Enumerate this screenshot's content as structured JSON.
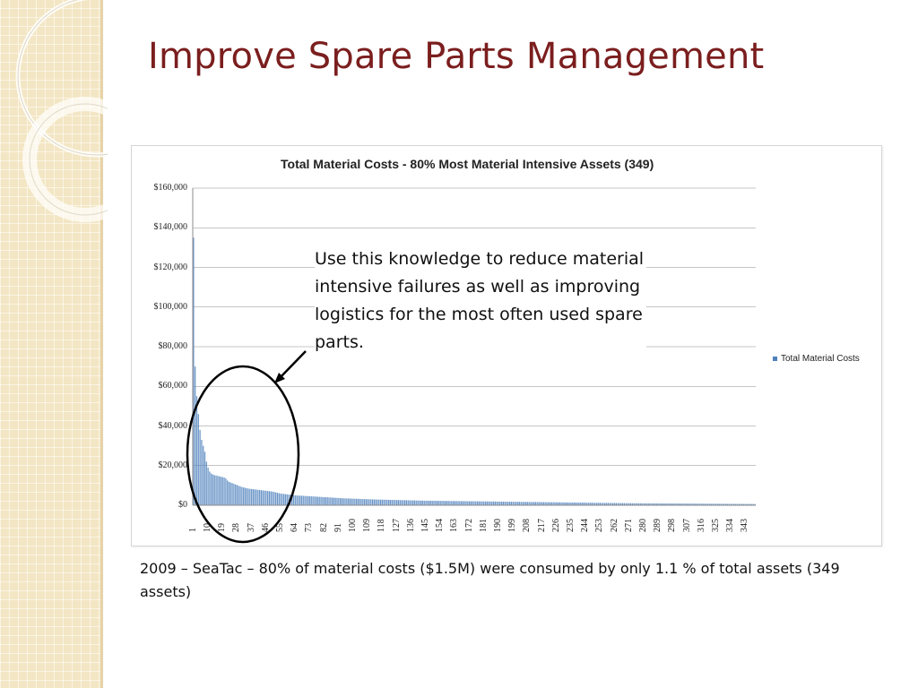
{
  "slide": {
    "title": "Improve Spare Parts Management",
    "callout_text": "Use this knowledge to reduce material intensive failures as well as improving logistics for the most often used spare parts.",
    "footer_text": "2009 – SeaTac – 80% of material costs ($1.5M) were consumed by only 1.1 % of total assets (349 assets)"
  },
  "colors": {
    "title": "#7b1e1e",
    "bar": "#4f81bd",
    "band": "#f3e6c4"
  },
  "chart_data": {
    "type": "bar",
    "title": "Total Material Costs - 80% Most Material Intensive Assets (349)",
    "xlabel": "",
    "ylabel": "",
    "ylim": [
      0,
      160000
    ],
    "y_ticks": [
      "$0",
      "$20,000",
      "$40,000",
      "$60,000",
      "$80,000",
      "$100,000",
      "$120,000",
      "$140,000",
      "$160,000"
    ],
    "x_tick_labels": [
      "1",
      "10",
      "19",
      "28",
      "37",
      "46",
      "55",
      "64",
      "73",
      "82",
      "91",
      "100",
      "109",
      "118",
      "127",
      "136",
      "145",
      "154",
      "163",
      "172",
      "181",
      "190",
      "199",
      "208",
      "217",
      "226",
      "235",
      "244",
      "253",
      "262",
      "271",
      "280",
      "289",
      "298",
      "307",
      "316",
      "325",
      "334",
      "343"
    ],
    "legend_position": "right",
    "grid": true,
    "series": [
      {
        "name": "Total Material Costs",
        "values": [
          135000,
          70000,
          55000,
          46000,
          38000,
          33000,
          30000,
          27000,
          22000,
          19000,
          17000,
          16000,
          15500,
          15200,
          15000,
          14800,
          14600,
          14400,
          14200,
          14000,
          13500,
          12500,
          11800,
          11500,
          11200,
          10800,
          10500,
          10200,
          9800,
          9500,
          9200,
          9000,
          8800,
          8600,
          8400,
          8300,
          8200,
          8100,
          8000,
          7900,
          7800,
          7700,
          7600,
          7500,
          7400,
          7300,
          7200,
          7100,
          7000,
          6900,
          6700,
          6500,
          6300,
          6100,
          5900,
          5800,
          5700,
          5600,
          5500,
          5400,
          5300,
          5200,
          5100,
          5000,
          4950,
          4900,
          4850,
          4800,
          4750,
          4700,
          4650,
          4600,
          4550,
          4500,
          4450,
          4400,
          4350,
          4300,
          4250,
          4200,
          4150,
          4100,
          4050,
          4000,
          3950,
          3900,
          3850,
          3800,
          3750,
          3700,
          3650,
          3600,
          3550,
          3500,
          3470,
          3440,
          3410,
          3380,
          3350,
          3320,
          3290,
          3260,
          3230,
          3200,
          3170,
          3140,
          3110,
          3080,
          3050,
          3020,
          2990,
          2960,
          2930,
          2900,
          2880,
          2860,
          2840,
          2820,
          2800,
          2780,
          2760,
          2740,
          2720,
          2700,
          2680,
          2660,
          2640,
          2620,
          2600,
          2580,
          2560,
          2540,
          2520,
          2500,
          2480,
          2460,
          2440,
          2420,
          2400,
          2380,
          2360,
          2340,
          2320,
          2300,
          2290,
          2280,
          2270,
          2260,
          2250,
          2240,
          2230,
          2220,
          2210,
          2200,
          2190,
          2180,
          2170,
          2160,
          2150,
          2140,
          2130,
          2120,
          2110,
          2100,
          2090,
          2080,
          2070,
          2060,
          2050,
          2040,
          2030,
          2020,
          2010,
          2000,
          1990,
          1980,
          1970,
          1960,
          1950,
          1940,
          1930,
          1920,
          1910,
          1900,
          1890,
          1880,
          1870,
          1860,
          1850,
          1840,
          1830,
          1820,
          1810,
          1800,
          1790,
          1780,
          1770,
          1760,
          1750,
          1740,
          1730,
          1720,
          1710,
          1700,
          1690,
          1680,
          1670,
          1660,
          1650,
          1640,
          1630,
          1620,
          1610,
          1600,
          1590,
          1580,
          1570,
          1560,
          1550,
          1540,
          1530,
          1520,
          1510,
          1500,
          1490,
          1480,
          1470,
          1460,
          1450,
          1440,
          1430,
          1420,
          1410,
          1400,
          1390,
          1380,
          1370,
          1360,
          1350,
          1340,
          1330,
          1320,
          1310,
          1300,
          1290,
          1280,
          1270,
          1260,
          1250,
          1240,
          1230,
          1220,
          1210,
          1200,
          1190,
          1180,
          1170,
          1160,
          1150,
          1140,
          1130,
          1120,
          1110,
          1100,
          1090,
          1080,
          1070,
          1060,
          1050,
          1040,
          1030,
          1020,
          1010,
          1000,
          995,
          990,
          985,
          980,
          975,
          970,
          965,
          960,
          955,
          950,
          945,
          940,
          935,
          930,
          925,
          920,
          915,
          910,
          905,
          900,
          895,
          890,
          885,
          880,
          875,
          870,
          865,
          860,
          855,
          850,
          845,
          840,
          835,
          830,
          825,
          820,
          815,
          810,
          805,
          800,
          795,
          790,
          785,
          780,
          775,
          770,
          765,
          760,
          755,
          750,
          745,
          740,
          735,
          730,
          725,
          720,
          715,
          710,
          705,
          700,
          695,
          690,
          685,
          680,
          675,
          670,
          665,
          660,
          655,
          650,
          645,
          640,
          635,
          630,
          625
        ]
      }
    ]
  }
}
